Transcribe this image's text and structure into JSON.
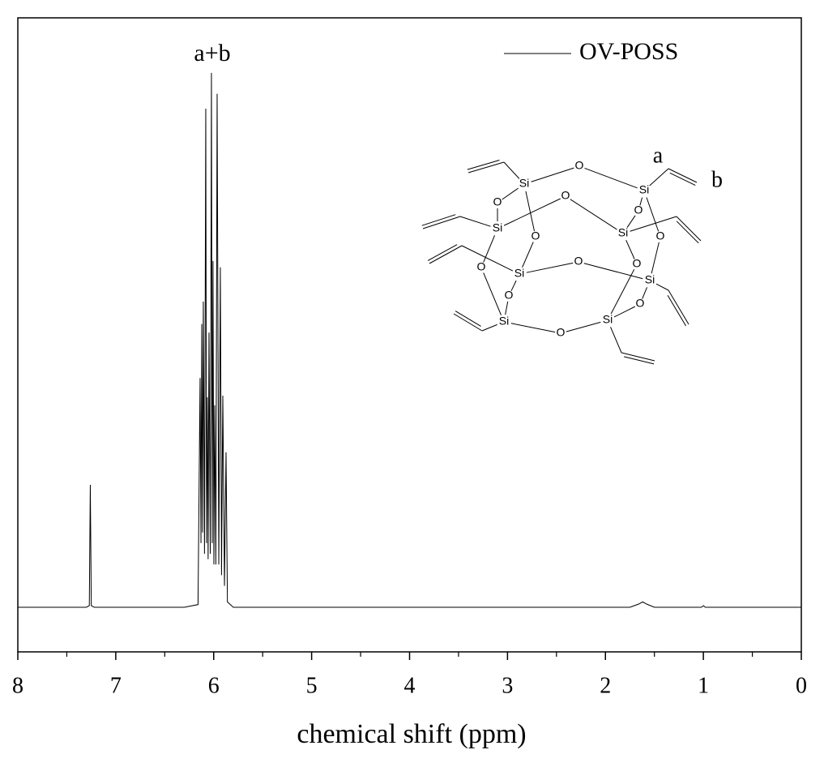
{
  "chart_data": {
    "type": "line",
    "x_label": "chemical shift (ppm)",
    "annotations": [
      "a+b",
      "a",
      "b"
    ],
    "structure_atoms": [
      "Si",
      "O"
    ],
    "xlim": [
      8,
      0
    ],
    "xticks": [
      8,
      7,
      6,
      5,
      4,
      3,
      2,
      1,
      0
    ],
    "ylim": [
      -8.35,
      110.3
    ],
    "legend": "top-right",
    "series": [
      {
        "name": "OV-POSS",
        "color": "#000000",
        "x": [
          8,
          7.3,
          7.27,
          7.26,
          7.25,
          7.22,
          6.3,
          6.16,
          6.139,
          6.13,
          6.122,
          6.114,
          6.106,
          6.094,
          6.081,
          6.073,
          6.065,
          6.057,
          6.048,
          6.035,
          6.023,
          6.015,
          6.007,
          5.998,
          5.99,
          5.978,
          5.965,
          5.948,
          5.932,
          5.92,
          5.907,
          5.89,
          5.874,
          5.86,
          5.8,
          1.75,
          1.66,
          1.62,
          1.58,
          1.5,
          1.02,
          1.0,
          0.98,
          0
        ],
        "values": [
          0,
          0,
          0.3,
          22.9,
          0.3,
          0,
          0,
          0.5,
          42.9,
          12,
          53,
          14,
          57.2,
          10,
          93.3,
          12,
          39.3,
          9,
          51.4,
          10,
          100,
          12,
          64.8,
          8,
          37.8,
          8,
          96.1,
          8,
          63.6,
          6,
          39.6,
          4,
          29,
          1,
          0,
          0,
          0.6,
          1,
          0.6,
          0,
          0,
          0.3,
          0,
          0
        ]
      }
    ]
  }
}
